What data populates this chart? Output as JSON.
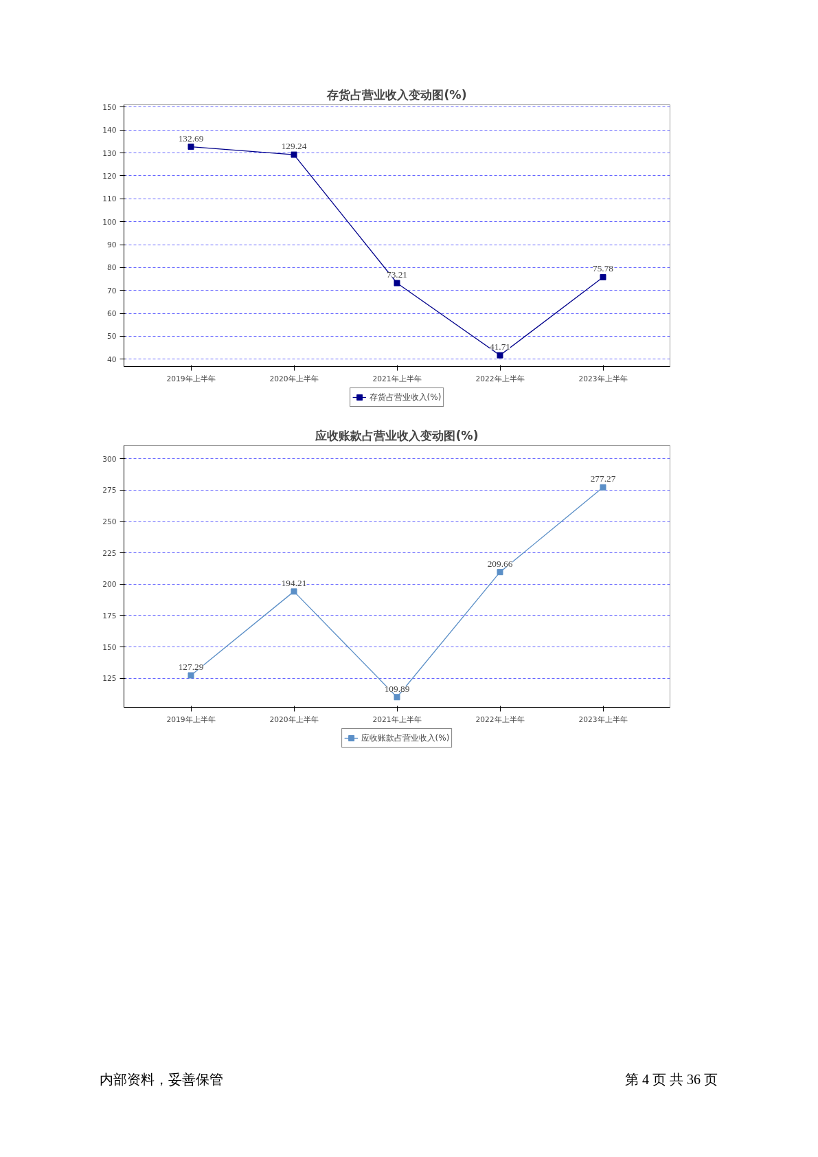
{
  "chart_data": [
    {
      "type": "line",
      "title": "存货占营业收入变动图(%)",
      "categories": [
        "2019年上半年",
        "2020年上半年",
        "2021年上半年",
        "2022年上半年",
        "2023年上半年"
      ],
      "series": [
        {
          "name": "存货占营业收入(%)",
          "color": "#00008b",
          "values": [
            132.69,
            129.24,
            73.21,
            41.71,
            75.78
          ]
        }
      ],
      "ylim": [
        36.8,
        151
      ],
      "yticks": [
        40,
        50,
        60,
        70,
        80,
        90,
        100,
        110,
        120,
        130,
        140,
        150
      ],
      "grid": "y",
      "legend": "bottom",
      "marker": "square",
      "line_style": "solid",
      "data_labels": true
    },
    {
      "type": "line",
      "title": "应收账款占营业收入变动图(%)",
      "categories": [
        "2019年上半年",
        "2020年上半年",
        "2021年上半年",
        "2022年上半年",
        "2023年上半年"
      ],
      "series": [
        {
          "name": "应收账款占营业收入(%)",
          "color": "#5b8fc7",
          "values": [
            127.29,
            194.21,
            109.89,
            209.66,
            277.27
          ]
        }
      ],
      "ylim": [
        101.8,
        310.6
      ],
      "yticks": [
        125,
        150,
        175,
        200,
        225,
        250,
        275,
        300
      ],
      "grid": "y",
      "legend": "bottom",
      "marker": "square",
      "line_style": "solid",
      "data_labels": true,
      "annotations": [
        "内部资料，妥善保管",
        "第 4 页   共 36 页"
      ]
    }
  ]
}
